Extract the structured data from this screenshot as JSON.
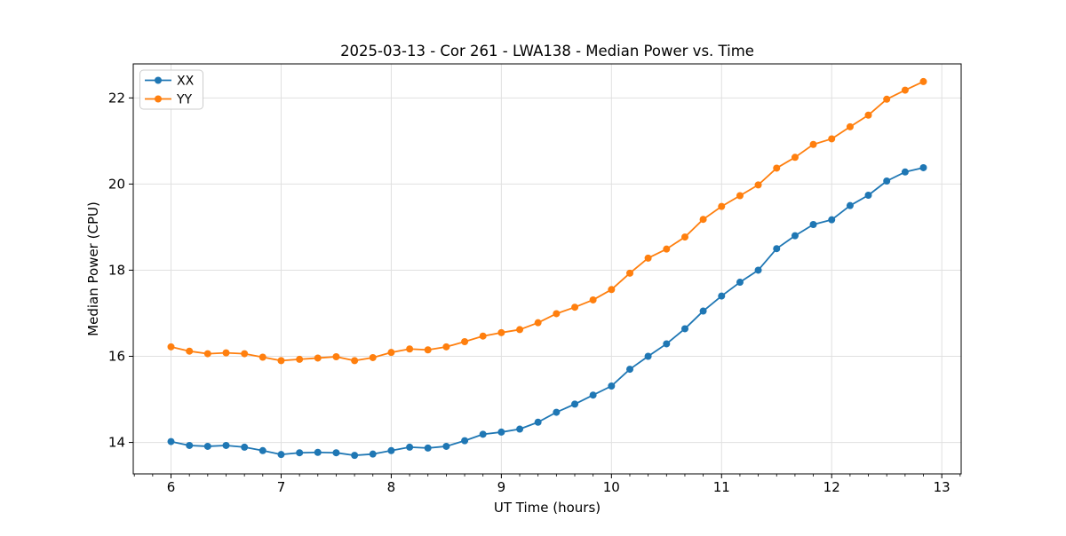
{
  "page": {
    "background": "#ffffff"
  },
  "style": {
    "grid_color": "#e0e0e0",
    "spine_color": "#000000",
    "tick_color": "#000000",
    "text_color": "#000000",
    "legend_border_color": "#cccccc",
    "legend_background": "#ffffff"
  },
  "chart_data": {
    "type": "line",
    "title": "2025-03-13 - Cor 261 - LWA138 - Median Power vs. Time",
    "xlabel": "UT Time (hours)",
    "ylabel": "Median Power (CPU)",
    "marker": "circle",
    "grid": true,
    "legend": {
      "position": "upper-left",
      "entries": [
        "XX",
        "YY"
      ]
    },
    "axes": {
      "xlim": [
        5.657,
        13.176
      ],
      "ylim": [
        13.27,
        22.79
      ],
      "xticks": [
        6,
        7,
        8,
        9,
        10,
        11,
        12,
        13
      ],
      "yticks": [
        14,
        16,
        18,
        20,
        22
      ],
      "x_minor_step": 0.1667
    },
    "x": [
      6.0,
      6.167,
      6.333,
      6.5,
      6.667,
      6.833,
      7.0,
      7.167,
      7.333,
      7.5,
      7.667,
      7.833,
      8.0,
      8.167,
      8.333,
      8.5,
      8.667,
      8.833,
      9.0,
      9.167,
      9.333,
      9.5,
      9.667,
      9.833,
      10.0,
      10.167,
      10.333,
      10.5,
      10.667,
      10.833,
      11.0,
      11.167,
      11.333,
      11.5,
      11.667,
      11.833,
      12.0,
      12.167,
      12.333,
      12.5,
      12.667,
      12.833
    ],
    "series": [
      {
        "name": "XX",
        "color": "#1f77b4",
        "values": [
          14.02,
          13.93,
          13.91,
          13.93,
          13.89,
          13.81,
          13.72,
          13.76,
          13.77,
          13.76,
          13.7,
          13.73,
          13.81,
          13.89,
          13.87,
          13.91,
          14.04,
          14.19,
          14.24,
          14.31,
          14.47,
          14.7,
          14.89,
          15.1,
          15.31,
          15.7,
          16.0,
          16.29,
          16.64,
          17.05,
          17.4,
          17.72,
          18.0,
          18.5,
          18.8,
          19.06,
          19.17,
          19.5,
          19.74,
          20.07,
          20.28,
          20.38
        ]
      },
      {
        "name": "YY",
        "color": "#ff7f0e",
        "values": [
          16.22,
          16.12,
          16.06,
          16.08,
          16.06,
          15.98,
          15.9,
          15.93,
          15.96,
          15.99,
          15.9,
          15.97,
          16.09,
          16.17,
          16.15,
          16.22,
          16.34,
          16.47,
          16.55,
          16.62,
          16.78,
          16.99,
          17.14,
          17.31,
          17.55,
          17.93,
          18.28,
          18.49,
          18.77,
          19.18,
          19.48,
          19.73,
          19.98,
          20.37,
          20.62,
          20.92,
          21.05,
          21.33,
          21.6,
          21.97,
          22.18,
          22.38
        ]
      }
    ]
  }
}
